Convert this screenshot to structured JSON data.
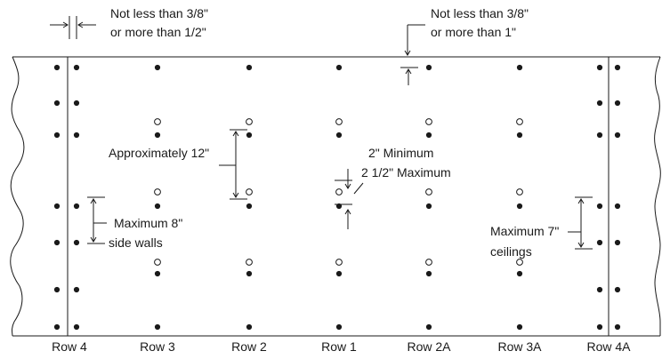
{
  "rows": [
    {
      "id": "row-4",
      "label": "Row 4"
    },
    {
      "id": "row-3",
      "label": "Row 3"
    },
    {
      "id": "row-2",
      "label": "Row 2"
    },
    {
      "id": "row-1",
      "label": "Row 1"
    },
    {
      "id": "row-2a",
      "label": "Row 2A"
    },
    {
      "id": "row-3a",
      "label": "Row 3A"
    },
    {
      "id": "row-4a",
      "label": "Row 4A"
    }
  ],
  "annotations": {
    "edge_distance": {
      "line1": "Not less than 3/8\"",
      "line2": "or more than 1/2\""
    },
    "top_distance": {
      "line1": "Not less than 3/8\"",
      "line2": "or more than 1\""
    },
    "row_spacing": {
      "text": "Approximately 12\""
    },
    "hole_offset": {
      "line1": "2\" Minimum",
      "line2": "2 1/2\" Maximum"
    },
    "side_walls": {
      "line1": "Maximum 8\"",
      "line2": "side walls"
    },
    "ceilings": {
      "line1": "Maximum 7\"",
      "line2": "ceilings"
    }
  }
}
